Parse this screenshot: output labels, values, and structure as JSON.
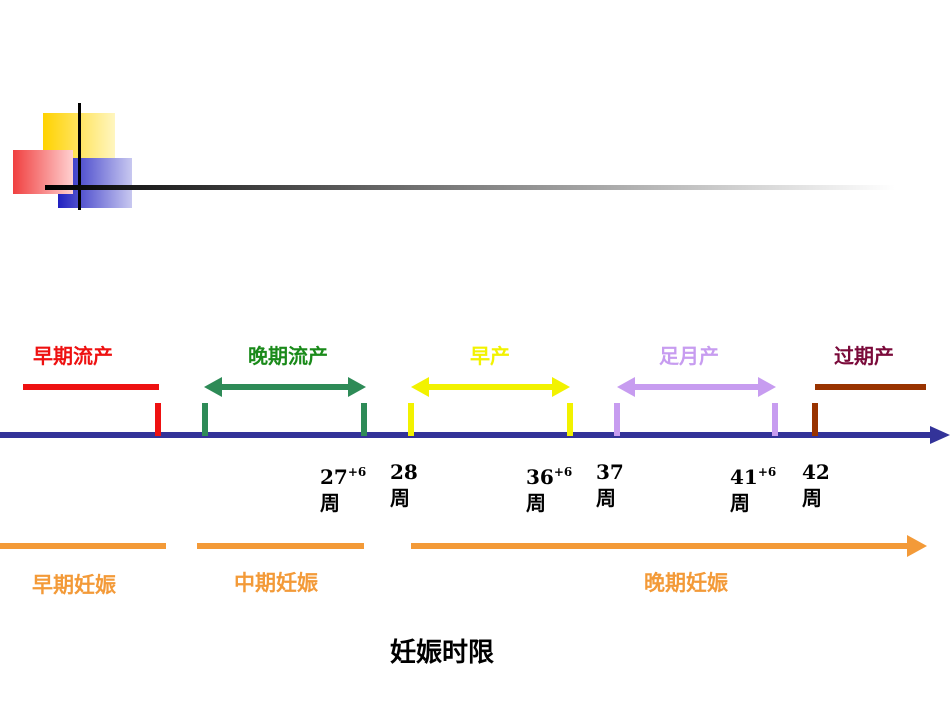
{
  "colors": {
    "axis": "#333399",
    "early_abortion": "#ee1111",
    "late_abortion": "#2e8b57",
    "preterm": "#f2f200",
    "term": "#c79cf0",
    "postterm": "#993300",
    "stage": "#f39a38"
  },
  "categories": [
    {
      "label": "早期流产",
      "color": "#ee1111"
    },
    {
      "label": "晚期流产",
      "color": "#1a8a1a"
    },
    {
      "label": "早产",
      "color": "#f2f200"
    },
    {
      "label": "足月产",
      "color": "#c79cf0"
    },
    {
      "label": "过期产",
      "color": "#7a0a3a"
    }
  ],
  "weeks": [
    {
      "num": "27",
      "sup": "+6",
      "unit": "周"
    },
    {
      "num": "28",
      "sup": "",
      "unit": "周"
    },
    {
      "num": "36",
      "sup": "+6",
      "unit": "周"
    },
    {
      "num": "37",
      "sup": "",
      "unit": "周"
    },
    {
      "num": "41",
      "sup": "+6",
      "unit": "周"
    },
    {
      "num": "42",
      "sup": "",
      "unit": "周"
    }
  ],
  "stages": [
    {
      "label": "早期妊娠"
    },
    {
      "label": "中期妊娠"
    },
    {
      "label": "晚期妊娠"
    }
  ],
  "caption": "妊娠时限"
}
